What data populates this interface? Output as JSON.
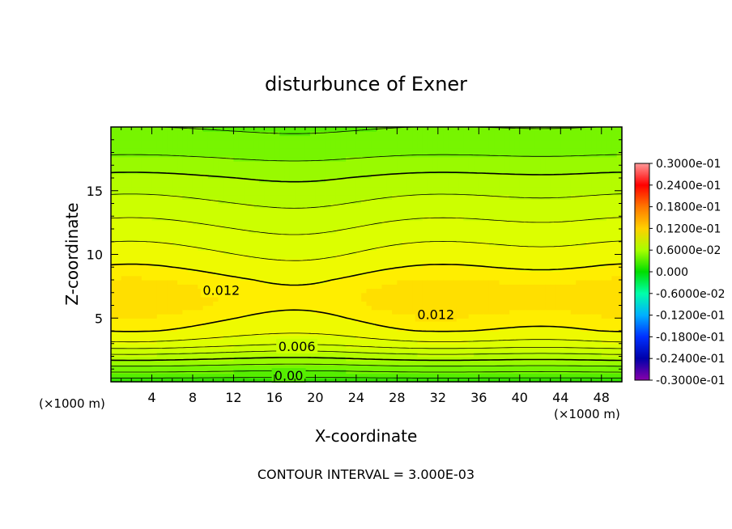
{
  "chart_data": {
    "type": "heatmap",
    "title": "disturbunce of Exner",
    "xlabel": "X-coordinate",
    "ylabel": "Z-coordinate",
    "x_unit": "(×1000 m)",
    "y_unit": "(×1000 m)",
    "xlim": [
      0,
      50
    ],
    "ylim": [
      0,
      20
    ],
    "x_ticks": [
      4,
      8,
      12,
      16,
      20,
      24,
      28,
      32,
      36,
      40,
      44,
      48
    ],
    "y_ticks": [
      5,
      10,
      15
    ],
    "contour_interval_text": "CONTOUR INTERVAL = 3.000E-03",
    "contour_labels": [
      {
        "text": "0.012",
        "x": 10.8,
        "z": 7.2
      },
      {
        "text": "0.012",
        "x": 31.8,
        "z": 5.3
      },
      {
        "text": "0.006",
        "x": 18.2,
        "z": 2.8
      },
      {
        "text": "0.00",
        "x": 17.4,
        "z": 0.5
      }
    ],
    "profile": {
      "z": [
        0,
        1,
        2,
        3,
        4,
        5,
        6,
        7,
        8,
        9,
        10,
        12,
        14,
        16,
        18,
        20
      ],
      "value": [
        0.0005,
        0.0035,
        0.0065,
        0.0095,
        0.0112,
        0.012,
        0.0127,
        0.0128,
        0.0122,
        0.0113,
        0.0105,
        0.009,
        0.0075,
        0.006,
        0.004,
        0.0028
      ]
    },
    "colorbar": {
      "labels": [
        "0.3000e-01",
        "0.2400e-01",
        "0.1800e-01",
        "0.1200e-01",
        "0.6000e-02",
        "0.000",
        "-0.6000e-02",
        "-0.1200e-01",
        "-0.1800e-01",
        "-0.2400e-01",
        "-0.3000e-01"
      ],
      "colors": [
        "#ff9999",
        "#ff0000",
        "#ff7700",
        "#ffd000",
        "#a8ff00",
        "#00dd00",
        "#00ffaa",
        "#00b0ff",
        "#0030ff",
        "#0000aa",
        "#8800aa"
      ]
    }
  }
}
